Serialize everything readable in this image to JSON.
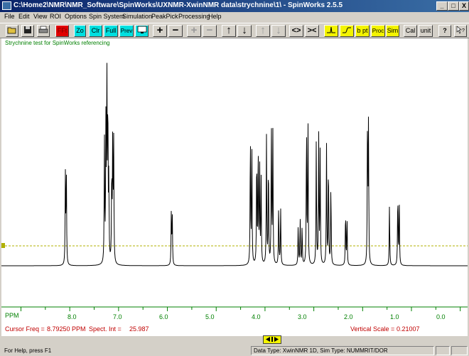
{
  "window": {
    "title": "C:\\Home2\\NMR\\NMR_Software\\SpinWorks\\UXNMR-XwinNMR data\\strychnine\\1\\ - SpinWorks 2.5.5",
    "minimize": "_",
    "maximize": "□",
    "close": "X"
  },
  "menu": [
    "File",
    "Edit",
    "View",
    "ROI",
    "Options",
    "Spin System",
    "Simulation",
    "PeakPick",
    "Processing",
    "Help"
  ],
  "toolbar": {
    "ft": "FFt",
    "zo": "Zo",
    "clr": "Clr",
    "full": "Full",
    "prev": "Prev",
    "plus": "+",
    "minus": "−",
    "plus_dis": "+",
    "minus_dis": "−",
    "up": "↑",
    "down": "↓",
    "up_dis": "↑",
    "down_dis": "↓",
    "expand": "<>",
    "shrink": "><",
    "bpt": "b pt",
    "proc": "Proc",
    "sim": "Sim",
    "cal": "Cal",
    "unit": "unit",
    "help": "?"
  },
  "plot": {
    "caption": "Strychnine test for SpinWorks referencing",
    "axis_label": "PPM",
    "ticks": [
      "8.0",
      "7.0",
      "6.0",
      "5.0",
      "4.0",
      "3.0",
      "2.0",
      "1.0",
      "0.0"
    ],
    "cursor_freq_label": "Cursor Freq =",
    "cursor_freq_value": "8.79250 PPM",
    "spect_int_label": "Spect. Int =",
    "spect_int_value": "25.987",
    "vertical_scale_label": "Vertical Scale =",
    "vertical_scale_value": "0.21007",
    "trace_color": "#000000",
    "threshold_color": "#b0b000"
  },
  "status": {
    "help": "For Help, press F1",
    "data_type": "Data Type: XwinNMR 1D,   Sim Type: NUMMRIT/DOR"
  },
  "chart_data": {
    "type": "line",
    "x_unit": "PPM",
    "xlim": [
      9.4,
      -0.15
    ],
    "peaks": [
      {
        "ppm": 8.07,
        "h": 0.46
      },
      {
        "ppm": 8.09,
        "h": 0.43
      },
      {
        "ppm": 7.24,
        "h": 0.92
      },
      {
        "ppm": 7.22,
        "h": 0.78
      },
      {
        "ppm": 7.26,
        "h": 0.65
      },
      {
        "ppm": 7.29,
        "h": 0.6
      },
      {
        "ppm": 7.2,
        "h": 0.4
      },
      {
        "ppm": 7.12,
        "h": 0.6
      },
      {
        "ppm": 7.1,
        "h": 0.58
      },
      {
        "ppm": 7.14,
        "h": 0.45
      },
      {
        "ppm": 5.92,
        "h": 0.25
      },
      {
        "ppm": 5.9,
        "h": 0.24
      },
      {
        "ppm": 4.3,
        "h": 0.65
      },
      {
        "ppm": 4.27,
        "h": 0.58
      },
      {
        "ppm": 4.17,
        "h": 0.55
      },
      {
        "ppm": 4.14,
        "h": 0.58
      },
      {
        "ppm": 4.11,
        "h": 0.5
      },
      {
        "ppm": 4.08,
        "h": 0.42
      },
      {
        "ppm": 3.97,
        "h": 0.62
      },
      {
        "ppm": 3.93,
        "h": 0.52
      },
      {
        "ppm": 3.87,
        "h": 0.7
      },
      {
        "ppm": 3.84,
        "h": 0.66
      },
      {
        "ppm": 3.72,
        "h": 0.3
      },
      {
        "ppm": 3.68,
        "h": 0.28
      },
      {
        "ppm": 3.32,
        "h": 0.2
      },
      {
        "ppm": 3.28,
        "h": 0.23
      },
      {
        "ppm": 3.24,
        "h": 0.19
      },
      {
        "ppm": 3.15,
        "h": 0.7
      },
      {
        "ppm": 3.12,
        "h": 0.72
      },
      {
        "ppm": 2.95,
        "h": 0.6
      },
      {
        "ppm": 2.9,
        "h": 0.62
      },
      {
        "ppm": 2.87,
        "h": 0.55
      },
      {
        "ppm": 2.74,
        "h": 0.58
      },
      {
        "ppm": 2.7,
        "h": 0.52
      },
      {
        "ppm": 2.65,
        "h": 0.4
      },
      {
        "ppm": 2.35,
        "h": 0.27
      },
      {
        "ppm": 2.32,
        "h": 0.24
      },
      {
        "ppm": 1.9,
        "h": 0.73
      },
      {
        "ppm": 1.88,
        "h": 0.67
      },
      {
        "ppm": 1.45,
        "h": 0.3
      },
      {
        "ppm": 1.28,
        "h": 0.36
      },
      {
        "ppm": 1.25,
        "h": 0.33
      }
    ]
  }
}
